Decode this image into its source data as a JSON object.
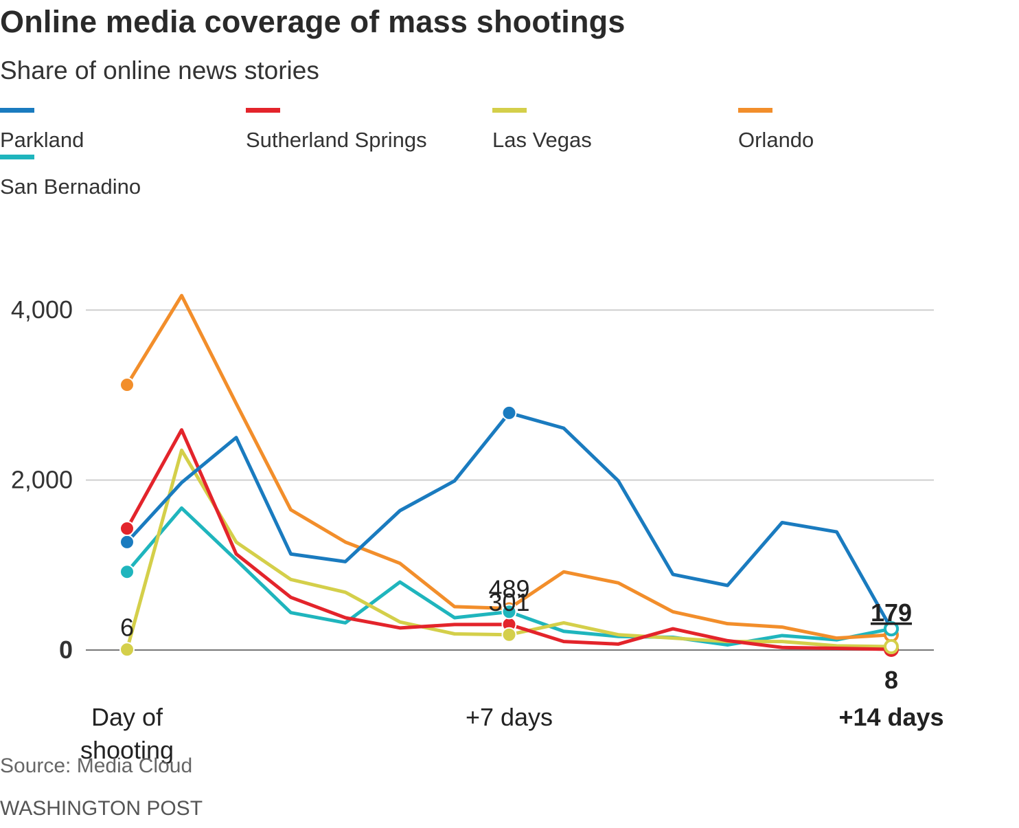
{
  "header": {
    "title": "Online media coverage of mass shootings",
    "subtitle": "Share of online news stories"
  },
  "legend": [
    {
      "label": "Parkland",
      "color": "#1a7bbf"
    },
    {
      "label": "Sutherland Springs",
      "color": "#e3242b"
    },
    {
      "label": "Las Vegas",
      "color": "#d4cf4a"
    },
    {
      "label": "Orlando",
      "color": "#f28e2b"
    },
    {
      "label": "San Bernadino",
      "color": "#1fb5bd"
    }
  ],
  "footer": {
    "source": "Source: Media Cloud",
    "credit": "WASHINGTON POST"
  },
  "chart_data": {
    "type": "line",
    "x": [
      0,
      1,
      2,
      3,
      4,
      5,
      6,
      7,
      8,
      9,
      10,
      11,
      12,
      13,
      14
    ],
    "x_ticks": [
      {
        "x": 0,
        "lines": [
          "Day of",
          "shooting"
        ],
        "bold": false
      },
      {
        "x": 7,
        "lines": [
          "+7 days"
        ],
        "bold": false
      },
      {
        "x": 14,
        "lines": [
          "+14 days"
        ],
        "bold": true
      }
    ],
    "y_ticks": [
      {
        "value": 0,
        "label": "0",
        "bold": true
      },
      {
        "value": 2000,
        "label": "2,000",
        "bold": false
      },
      {
        "value": 4000,
        "label": "4,000",
        "bold": false
      }
    ],
    "ylim": [
      -600,
      4200
    ],
    "grid": true,
    "series": [
      {
        "name": "San Bernadino",
        "color": "#1fb5bd",
        "values": [
          920,
          1670,
          1060,
          440,
          320,
          800,
          380,
          450,
          220,
          160,
          150,
          60,
          170,
          120,
          250
        ]
      },
      {
        "name": "Las Vegas",
        "color": "#d4cf4a",
        "values": [
          6,
          2350,
          1270,
          830,
          680,
          330,
          190,
          180,
          320,
          180,
          140,
          100,
          100,
          50,
          40
        ]
      },
      {
        "name": "Sutherland Springs",
        "color": "#e3242b",
        "values": [
          1430,
          2590,
          1130,
          620,
          380,
          260,
          300,
          301,
          100,
          70,
          250,
          110,
          30,
          20,
          8
        ]
      },
      {
        "name": "Orlando",
        "color": "#f28e2b",
        "values": [
          3120,
          4170,
          2900,
          1650,
          1270,
          1020,
          510,
          489,
          920,
          790,
          450,
          310,
          270,
          140,
          179
        ]
      },
      {
        "name": "Parkland",
        "color": "#1a7bbf",
        "values": [
          1270,
          1970,
          2500,
          1130,
          1040,
          1640,
          1990,
          2790,
          2610,
          1990,
          890,
          760,
          1500,
          1390,
          250
        ]
      }
    ],
    "markers": [
      {
        "series": 4,
        "x": 0
      },
      {
        "series": 2,
        "x": 0
      },
      {
        "series": 3,
        "x": 0
      },
      {
        "series": 0,
        "x": 0
      },
      {
        "series": 1,
        "x": 0
      },
      {
        "series": 4,
        "x": 7
      },
      {
        "series": 2,
        "x": 7
      },
      {
        "series": 3,
        "x": 7
      },
      {
        "series": 1,
        "x": 7
      },
      {
        "series": 0,
        "x": 7
      }
    ],
    "end_markers": [
      2,
      3,
      4,
      1,
      0
    ],
    "value_labels": [
      {
        "text": "6",
        "x": 0,
        "y": 6,
        "pos": "above",
        "bold": false
      },
      {
        "text": "489",
        "x": 7,
        "y": 489,
        "pos": "above2",
        "bold": false
      },
      {
        "text": "301",
        "x": 7,
        "y": 301,
        "pos": "above",
        "bold": false
      },
      {
        "text": "179",
        "x": 14,
        "y": 179,
        "pos": "above",
        "bold": true
      },
      {
        "text": "8",
        "x": 14,
        "y": 8,
        "pos": "below",
        "bold": true
      }
    ]
  }
}
